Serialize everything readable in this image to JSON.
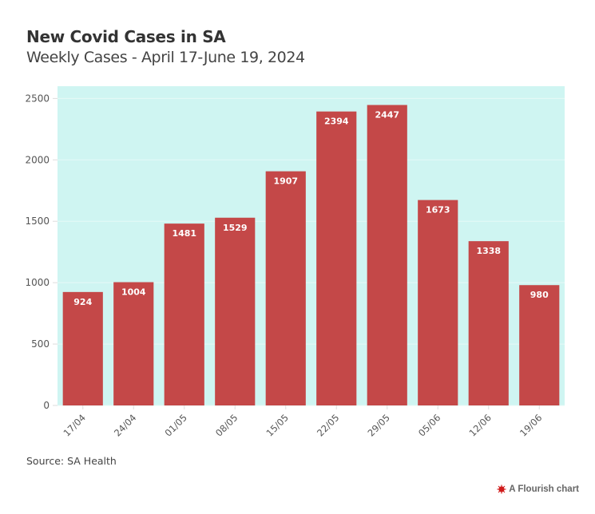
{
  "header": {
    "title": "New Covid Cases in SA",
    "subtitle": "Weekly Cases - April 17-June 19, 2024"
  },
  "footer": {
    "source": "Source: SA Health",
    "credit": "A Flourish chart",
    "credit_icon": "flourish-logo-icon"
  },
  "colors": {
    "bar": "#c44848",
    "plot_background": "#cff5f2",
    "bar_label": "#ffffff",
    "tick_label": "#555555",
    "gridline": "#e6f9f7"
  },
  "chart_data": {
    "type": "bar",
    "title": "New Covid Cases in SA",
    "subtitle": "Weekly Cases - April 17-June 19, 2024",
    "xlabel": "",
    "ylabel": "",
    "categories": [
      "17/04",
      "24/04",
      "01/05",
      "08/05",
      "15/05",
      "22/05",
      "29/05",
      "05/06",
      "12/06",
      "19/06"
    ],
    "values": [
      924,
      1004,
      1481,
      1529,
      1907,
      2394,
      2447,
      1673,
      1338,
      980
    ],
    "yticks": [
      0,
      500,
      1000,
      1500,
      2000,
      2500
    ],
    "ylim": [
      0,
      2600
    ],
    "grid": true,
    "legend": "none",
    "data_labels": "inside-top",
    "x_tick_rotation_deg": -45
  }
}
